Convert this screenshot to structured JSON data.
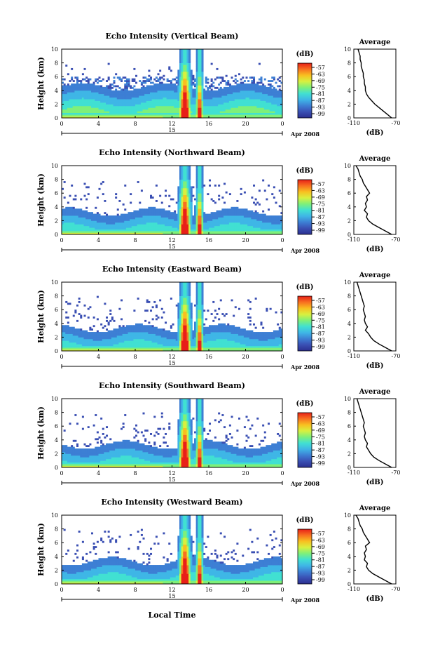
{
  "figure": {
    "date_label": "Apr 2008",
    "day_label": "15",
    "x_axis_title": "Local Time",
    "colorbar_unit": "(dB)",
    "avg_title": "Average",
    "avg_xlabel": "(dB)"
  },
  "chart_data": [
    {
      "type": "heatmap",
      "title": "Echo Intensity (Vertical Beam)",
      "ylabel": "Height (km)",
      "xlim": [
        0,
        24
      ],
      "ylim": [
        0,
        10
      ],
      "xticks": [
        "0",
        "4",
        "8",
        "12",
        "16",
        "20",
        "0"
      ],
      "yticks": [
        "0",
        "2",
        "4",
        "6",
        "8",
        "10"
      ],
      "colorbar_ticks": [
        "-57",
        "-63",
        "-69",
        "-75",
        "-81",
        "-87",
        "-93",
        "-99"
      ],
      "avg_profile": {
        "xlim": [
          -110,
          -70
        ],
        "xticks": [
          "-110",
          "-70"
        ],
        "yticks": [
          "0",
          "2",
          "4",
          "6",
          "8",
          "10"
        ],
        "x": [
          -74,
          -78,
          -82,
          -86,
          -90,
          -93,
          -96,
          -98,
          -99,
          -99,
          -100,
          -100,
          -101,
          -101,
          -102,
          -103,
          -103,
          -104,
          -104,
          -105,
          -106
        ],
        "y": [
          0,
          0.5,
          1,
          1.5,
          2,
          2.5,
          3,
          3.5,
          4,
          4.5,
          5,
          5.5,
          6,
          6.5,
          7,
          7.5,
          8,
          8.5,
          9,
          9.5,
          10
        ]
      }
    },
    {
      "type": "heatmap",
      "title": "Echo Intensity (Northward Beam)",
      "ylabel": "Height (km)",
      "xlim": [
        0,
        24
      ],
      "ylim": [
        0,
        10
      ],
      "xticks": [
        "0",
        "4",
        "8",
        "12",
        "16",
        "20",
        "0"
      ],
      "yticks": [
        "0",
        "2",
        "4",
        "6",
        "8",
        "10"
      ],
      "colorbar_ticks": [
        "-57",
        "-63",
        "-69",
        "-75",
        "-81",
        "-87",
        "-93",
        "-99"
      ],
      "avg_profile": {
        "xlim": [
          -110,
          -70
        ],
        "xticks": [
          "-110",
          "-70"
        ],
        "yticks": [
          "0",
          "2",
          "4",
          "6",
          "8",
          "10"
        ],
        "x": [
          -74,
          -80,
          -86,
          -92,
          -96,
          -98,
          -97,
          -100,
          -98,
          -99,
          -97,
          -98,
          -95,
          -97,
          -99,
          -101,
          -102,
          -104,
          -105,
          -106,
          -108
        ],
        "y": [
          0,
          0.5,
          1,
          1.5,
          2,
          2.5,
          3,
          3.5,
          4,
          4.5,
          5,
          5.5,
          6,
          6.5,
          7,
          7.5,
          8,
          8.5,
          9,
          9.5,
          10
        ]
      }
    },
    {
      "type": "heatmap",
      "title": "Echo Intensity (Eastward Beam)",
      "ylabel": "Height (km)",
      "xlim": [
        0,
        24
      ],
      "ylim": [
        0,
        10
      ],
      "xticks": [
        "0",
        "4",
        "8",
        "12",
        "16",
        "20",
        "0"
      ],
      "yticks": [
        "0",
        "2",
        "4",
        "6",
        "8",
        "10"
      ],
      "colorbar_ticks": [
        "-57",
        "-63",
        "-69",
        "-75",
        "-81",
        "-87",
        "-93",
        "-99"
      ],
      "avg_profile": {
        "xlim": [
          -110,
          -70
        ],
        "xticks": [
          "-110",
          "-70"
        ],
        "yticks": [
          "0",
          "2",
          "4",
          "6",
          "8",
          "10"
        ],
        "x": [
          -74,
          -80,
          -86,
          -91,
          -94,
          -96,
          -99,
          -97,
          -99,
          -100,
          -99,
          -100,
          -101,
          -100,
          -101,
          -102,
          -103,
          -104,
          -105,
          -106,
          -107
        ],
        "y": [
          0,
          0.5,
          1,
          1.5,
          2,
          2.5,
          3,
          3.5,
          4,
          4.5,
          5,
          5.5,
          6,
          6.5,
          7,
          7.5,
          8,
          8.5,
          9,
          9.5,
          10
        ]
      }
    },
    {
      "type": "heatmap",
      "title": "Echo Intensity (Southward Beam)",
      "ylabel": "Height (km)",
      "xlim": [
        0,
        24
      ],
      "ylim": [
        0,
        10
      ],
      "xticks": [
        "0",
        "4",
        "8",
        "12",
        "16",
        "20",
        "0"
      ],
      "yticks": [
        "0",
        "2",
        "4",
        "6",
        "8",
        "10"
      ],
      "colorbar_ticks": [
        "-57",
        "-63",
        "-69",
        "-75",
        "-81",
        "-87",
        "-93",
        "-99"
      ],
      "avg_profile": {
        "xlim": [
          -110,
          -70
        ],
        "xticks": [
          "-110",
          "-70"
        ],
        "yticks": [
          "0",
          "2",
          "4",
          "6",
          "8",
          "10"
        ],
        "x": [
          -74,
          -80,
          -86,
          -91,
          -94,
          -96,
          -98,
          -97,
          -99,
          -100,
          -99,
          -100,
          -101,
          -100,
          -101,
          -102,
          -103,
          -104,
          -105,
          -106,
          -107
        ],
        "y": [
          0,
          0.5,
          1,
          1.5,
          2,
          2.5,
          3,
          3.5,
          4,
          4.5,
          5,
          5.5,
          6,
          6.5,
          7,
          7.5,
          8,
          8.5,
          9,
          9.5,
          10
        ]
      }
    },
    {
      "type": "heatmap",
      "title": "Echo Intensity (Westward Beam)",
      "ylabel": "Height (km)",
      "xlim": [
        0,
        24
      ],
      "ylim": [
        0,
        10
      ],
      "xticks": [
        "0",
        "4",
        "8",
        "12",
        "16",
        "20",
        "0"
      ],
      "yticks": [
        "0",
        "2",
        "4",
        "6",
        "8",
        "10"
      ],
      "colorbar_ticks": [
        "-57",
        "-63",
        "-69",
        "-75",
        "-81",
        "-87",
        "-93",
        "-99"
      ],
      "avg_profile": {
        "xlim": [
          -110,
          -70
        ],
        "xticks": [
          "-110",
          "-70"
        ],
        "yticks": [
          "0",
          "2",
          "4",
          "6",
          "8",
          "10"
        ],
        "x": [
          -74,
          -80,
          -86,
          -92,
          -96,
          -98,
          -97,
          -100,
          -99,
          -100,
          -98,
          -99,
          -95,
          -97,
          -99,
          -101,
          -102,
          -104,
          -105,
          -106,
          -108
        ],
        "y": [
          0,
          0.5,
          1,
          1.5,
          2,
          2.5,
          3,
          3.5,
          4,
          4.5,
          5,
          5.5,
          6,
          6.5,
          7,
          7.5,
          8,
          8.5,
          9,
          9.5,
          10
        ]
      }
    }
  ],
  "colors": {
    "colormap": [
      "#2b2f8f",
      "#3a4fb3",
      "#3d7fd4",
      "#3fb6e6",
      "#41e0d2",
      "#7ef07a",
      "#d8f040",
      "#f8c020",
      "#f87020",
      "#e82018"
    ]
  }
}
